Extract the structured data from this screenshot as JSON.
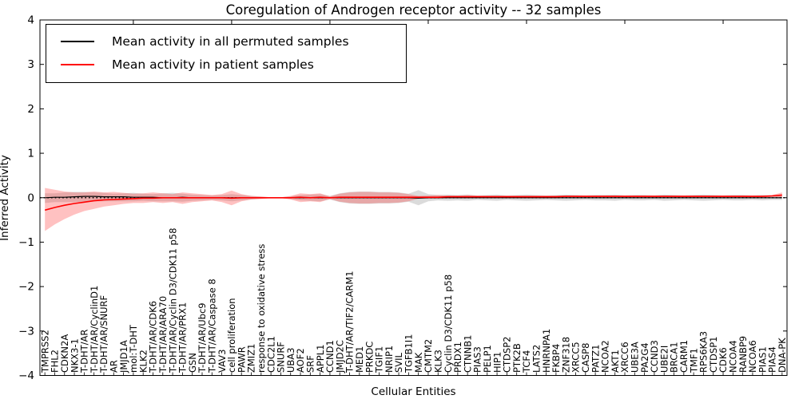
{
  "chart_data": {
    "type": "line",
    "title": "Coregulation of Androgen receptor activity -- 32 samples",
    "xlabel": "Cellular Entities",
    "ylabel": "Inferred Activity",
    "ylim": [
      -4,
      4
    ],
    "yticks": [
      4,
      3,
      2,
      1,
      0,
      -1,
      -2,
      -3,
      -4
    ],
    "grid": false,
    "legend_position": "upper left",
    "zero_line": true,
    "categories": [
      "TMPRSS2",
      "FHL2",
      "CDKN2A",
      "NKX3-1",
      "T-DHT/AR",
      "T-DHT/AR/CyclinD1",
      "T-DHT/AR/SNURF",
      "AR",
      "JMJD1A",
      "mol:T-DHT",
      "KLK2",
      "T-DHT/AR/CDK6",
      "T-DHT/AR/ARA70",
      "T-DHT/AR/Cyclin D3/CDK11 p58",
      "T-DHT/AR/PRX1",
      "GSN",
      "T-DHT/AR/Ubc9",
      "T-DHT/AR/Caspase 8",
      "VAV3",
      "cell proliferation",
      "PAWR",
      "ZMIZ1",
      "response to oxidative stress",
      "CDC2L1",
      "SNURF",
      "UBA3",
      "AOF2",
      "SRF",
      "APPL1",
      "CCND1",
      "JMJD2C",
      "T-DHT/AR/TIF2/CARM1",
      "MED1",
      "PRKDC",
      "TGIF1",
      "NRIP1",
      "SVIL",
      "TGFB1I1",
      "MAK",
      "CMTM2",
      "KLK3",
      "Cyclin D3/CDK11 p58",
      "PRDX1",
      "CTNNB1",
      "PIAS3",
      "PELP1",
      "HIP1",
      "CTDSP2",
      "PTK2B",
      "TCF4",
      "LATS2",
      "HNRNPA1",
      "FKBP4",
      "ZNF318",
      "XRCC5",
      "CASP8",
      "PATZ1",
      "NCOA2",
      "AKT1",
      "XRCC6",
      "UBE3A",
      "PA2G4",
      "CCND3",
      "UBE2I",
      "BRCA1",
      "CARM1",
      "TMF1",
      "RPS6KA3",
      "CTDSP1",
      "CDK6",
      "NCOA4",
      "RANBP9",
      "NCOA6",
      "PIAS1",
      "PIAS4",
      "DNA-PK"
    ],
    "series": [
      {
        "name": "Mean activity in all permuted samples",
        "color": "#000000",
        "band_color": "#999999",
        "band_opacity": 0.35,
        "values": [
          0.0,
          0.01,
          0.01,
          0.02,
          0.03,
          0.03,
          0.02,
          0.02,
          0.02,
          0.01,
          0.01,
          0.01,
          0.0,
          0.0,
          0.01,
          0.0,
          0.0,
          0.0,
          0.0,
          0.0,
          0.0,
          0.0,
          0.0,
          0.0,
          0.0,
          0.0,
          0.0,
          0.0,
          0.0,
          0.0,
          0.0,
          0.0,
          0.0,
          0.0,
          0.0,
          0.0,
          0.0,
          0.0,
          -0.01,
          0.0,
          0.0,
          0.0,
          0.0,
          0.0,
          0.0,
          0.0,
          0.0,
          0.0,
          0.0,
          0.0,
          0.0,
          0.0,
          0.0,
          0.0,
          0.0,
          0.0,
          0.0,
          0.0,
          0.0,
          0.0,
          0.0,
          0.0,
          0.0,
          0.0,
          0.0,
          0.0,
          0.0,
          0.0,
          0.0,
          0.0,
          0.0,
          0.0,
          0.0,
          0.0,
          0.0,
          0.0
        ],
        "band_upper": [
          0.1,
          0.1,
          0.12,
          0.13,
          0.13,
          0.12,
          0.11,
          0.09,
          0.1,
          0.11,
          0.09,
          0.08,
          0.1,
          0.11,
          0.09,
          0.07,
          0.06,
          0.05,
          0.06,
          0.08,
          0.06,
          0.04,
          0.02,
          0.01,
          0.01,
          0.03,
          0.06,
          0.07,
          0.08,
          0.04,
          0.1,
          0.13,
          0.14,
          0.14,
          0.13,
          0.13,
          0.12,
          0.09,
          0.17,
          0.08,
          0.06,
          0.07,
          0.06,
          0.07,
          0.05,
          0.06,
          0.07,
          0.05,
          0.06,
          0.07,
          0.06,
          0.05,
          0.06,
          0.07,
          0.06,
          0.05,
          0.06,
          0.06,
          0.07,
          0.05,
          0.06,
          0.06,
          0.05,
          0.07,
          0.06,
          0.05,
          0.06,
          0.07,
          0.06,
          0.05,
          0.06,
          0.06,
          0.05,
          0.06,
          0.05,
          0.05
        ],
        "band_lower": [
          -0.12,
          -0.1,
          -0.1,
          -0.1,
          -0.09,
          -0.08,
          -0.08,
          -0.08,
          -0.08,
          -0.08,
          -0.07,
          -0.08,
          -0.08,
          -0.08,
          -0.09,
          -0.07,
          -0.06,
          -0.05,
          -0.06,
          -0.08,
          -0.06,
          -0.04,
          -0.02,
          -0.01,
          -0.01,
          -0.03,
          -0.06,
          -0.07,
          -0.08,
          -0.04,
          -0.1,
          -0.13,
          -0.14,
          -0.14,
          -0.13,
          -0.13,
          -0.12,
          -0.09,
          -0.17,
          -0.08,
          -0.06,
          -0.07,
          -0.06,
          -0.07,
          -0.05,
          -0.06,
          -0.07,
          -0.05,
          -0.06,
          -0.07,
          -0.06,
          -0.05,
          -0.06,
          -0.07,
          -0.06,
          -0.05,
          -0.06,
          -0.06,
          -0.07,
          -0.05,
          -0.06,
          -0.06,
          -0.05,
          -0.07,
          -0.06,
          -0.05,
          -0.06,
          -0.07,
          -0.06,
          -0.05,
          -0.06,
          -0.06,
          -0.05,
          -0.06,
          -0.05,
          -0.05
        ]
      },
      {
        "name": "Mean activity in patient samples",
        "color": "#ff0000",
        "band_color": "#ff3333",
        "band_opacity": 0.3,
        "values": [
          -0.28,
          -0.22,
          -0.17,
          -0.13,
          -0.1,
          -0.07,
          -0.05,
          -0.04,
          -0.03,
          -0.02,
          -0.01,
          -0.01,
          0.0,
          0.0,
          0.0,
          0.0,
          0.0,
          0.0,
          0.0,
          -0.01,
          0.0,
          0.0,
          0.0,
          0.0,
          0.0,
          0.0,
          0.01,
          0.0,
          0.01,
          0.0,
          0.01,
          0.01,
          0.01,
          0.01,
          0.01,
          0.01,
          0.01,
          0.01,
          0.01,
          0.01,
          0.01,
          0.02,
          0.02,
          0.02,
          0.02,
          0.02,
          0.02,
          0.02,
          0.02,
          0.02,
          0.02,
          0.02,
          0.02,
          0.03,
          0.03,
          0.03,
          0.03,
          0.03,
          0.03,
          0.03,
          0.03,
          0.03,
          0.03,
          0.03,
          0.03,
          0.03,
          0.03,
          0.03,
          0.03,
          0.03,
          0.03,
          0.03,
          0.03,
          0.03,
          0.04,
          0.06
        ],
        "band_upper": [
          0.22,
          0.18,
          0.14,
          0.12,
          0.12,
          0.14,
          0.12,
          0.13,
          0.11,
          0.09,
          0.1,
          0.12,
          0.1,
          0.08,
          0.12,
          0.1,
          0.08,
          0.06,
          0.08,
          0.16,
          0.08,
          0.04,
          0.03,
          0.01,
          0.01,
          0.04,
          0.1,
          0.08,
          0.1,
          0.03,
          0.09,
          0.12,
          0.13,
          0.13,
          0.12,
          0.12,
          0.11,
          0.08,
          0.04,
          0.05,
          0.06,
          0.05,
          0.05,
          0.06,
          0.05,
          0.05,
          0.05,
          0.05,
          0.05,
          0.05,
          0.05,
          0.05,
          0.05,
          0.05,
          0.05,
          0.05,
          0.05,
          0.05,
          0.05,
          0.05,
          0.05,
          0.05,
          0.05,
          0.05,
          0.05,
          0.05,
          0.05,
          0.05,
          0.05,
          0.05,
          0.05,
          0.05,
          0.05,
          0.05,
          0.06,
          0.12
        ],
        "band_lower": [
          -0.75,
          -0.6,
          -0.48,
          -0.38,
          -0.3,
          -0.25,
          -0.2,
          -0.17,
          -0.14,
          -0.12,
          -0.12,
          -0.1,
          -0.12,
          -0.1,
          -0.14,
          -0.1,
          -0.08,
          -0.06,
          -0.1,
          -0.17,
          -0.08,
          -0.04,
          -0.03,
          -0.01,
          -0.01,
          -0.04,
          -0.1,
          -0.08,
          -0.1,
          -0.03,
          -0.09,
          -0.12,
          -0.13,
          -0.13,
          -0.12,
          -0.12,
          -0.11,
          -0.08,
          -0.02,
          -0.02,
          -0.02,
          -0.01,
          -0.01,
          -0.01,
          0.0,
          0.0,
          0.0,
          0.0,
          0.0,
          0.0,
          0.0,
          0.0,
          0.0,
          0.01,
          0.01,
          0.01,
          0.01,
          0.01,
          0.01,
          0.01,
          0.01,
          0.01,
          0.01,
          0.01,
          0.01,
          0.01,
          0.01,
          0.01,
          0.01,
          0.01,
          0.01,
          0.01,
          0.01,
          0.01,
          0.02,
          0.0
        ]
      }
    ]
  }
}
